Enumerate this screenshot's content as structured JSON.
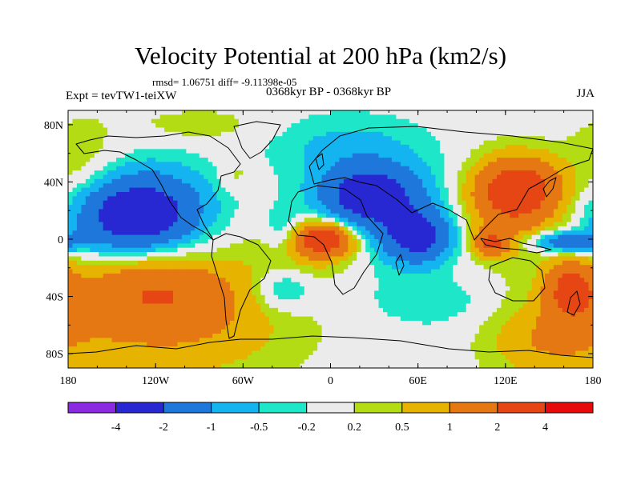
{
  "chart_data": {
    "type": "heatmap",
    "title": "Velocity Potential at 200 hPa (km2/s)",
    "stats_line": "rmsd= 1.06751  diff= -9.11398e-05",
    "experiment": "Expt = tevTW1-teiXW",
    "period": "0368kyr BP - 0368kyr BP",
    "season": "JJA",
    "lon_range": [
      -180,
      180
    ],
    "lat_range": [
      -90,
      90
    ],
    "x_ticks": [
      {
        "value": -180,
        "label": "180"
      },
      {
        "value": -120,
        "label": "120W"
      },
      {
        "value": -60,
        "label": "60W"
      },
      {
        "value": 0,
        "label": "0"
      },
      {
        "value": 60,
        "label": "60E"
      },
      {
        "value": 120,
        "label": "120E"
      },
      {
        "value": 180,
        "label": "180"
      }
    ],
    "y_ticks": [
      {
        "value": 80,
        "label": "80N"
      },
      {
        "value": 40,
        "label": "40N"
      },
      {
        "value": 0,
        "label": "0"
      },
      {
        "value": -40,
        "label": "40S"
      },
      {
        "value": -80,
        "label": "80S"
      }
    ],
    "levels": [
      -4,
      -2,
      -1,
      -0.5,
      -0.2,
      0.2,
      0.5,
      1,
      2,
      4
    ],
    "colorbar_labels": [
      "-4",
      "-2",
      "-1",
      "-0.5",
      "-0.2",
      "0.2",
      "0.5",
      "1",
      "2",
      "4"
    ],
    "colors": [
      "#8a2be2",
      "#2828d2",
      "#1e78dc",
      "#14b4f0",
      "#1ee6c8",
      "#ebebeb",
      "#b4dc14",
      "#e6b400",
      "#e67814",
      "#e64614",
      "#e60a0a"
    ],
    "field_centers": [
      {
        "lon": -135,
        "lat": 15,
        "sx": 28,
        "sy": 17,
        "amp": -2.6
      },
      {
        "lon": -125,
        "lat": 30,
        "sx": 32,
        "sy": 20,
        "amp": -0.9
      },
      {
        "lon": 25,
        "lat": 30,
        "sx": 22,
        "sy": 14,
        "amp": -2.3
      },
      {
        "lon": 60,
        "lat": 2,
        "sx": 16,
        "sy": 12,
        "amp": -2.3
      },
      {
        "lon": 40,
        "lat": 20,
        "sx": 34,
        "sy": 30,
        "amp": -0.9
      },
      {
        "lon": 5,
        "lat": 65,
        "sx": 35,
        "sy": 16,
        "amp": -0.5
      },
      {
        "lon": 162,
        "lat": -2,
        "sx": 18,
        "sy": 5,
        "amp": -1.8
      },
      {
        "lon": -32,
        "lat": 5,
        "sx": 10,
        "sy": 12,
        "amp": -0.8
      },
      {
        "lon": -32,
        "lat": -35,
        "sx": 14,
        "sy": 10,
        "amp": -0.8
      },
      {
        "lon": 72,
        "lat": -45,
        "sx": 30,
        "sy": 12,
        "amp": -0.4
      },
      {
        "lon": -5,
        "lat": 0,
        "sx": 14,
        "sy": 8,
        "amp": 2.7
      },
      {
        "lon": -10,
        "lat": -5,
        "sx": 30,
        "sy": 16,
        "amp": 0.8
      },
      {
        "lon": 130,
        "lat": 35,
        "sx": 20,
        "sy": 15,
        "amp": 2.4
      },
      {
        "lon": 120,
        "lat": 20,
        "sx": 25,
        "sy": 25,
        "amp": 1.0
      },
      {
        "lon": 110,
        "lat": -3,
        "sx": 8,
        "sy": 6,
        "amp": 2.0
      },
      {
        "lon": 165,
        "lat": -35,
        "sx": 12,
        "sy": 14,
        "amp": 2.2
      },
      {
        "lon": -120,
        "lat": -35,
        "sx": 40,
        "sy": 18,
        "amp": 1.6
      },
      {
        "lon": -110,
        "lat": -65,
        "sx": 60,
        "sy": 25,
        "amp": 0.9
      },
      {
        "lon": 150,
        "lat": -70,
        "sx": 30,
        "sy": 20,
        "amp": 0.9
      },
      {
        "lon": -90,
        "lat": 80,
        "sx": 30,
        "sy": 8,
        "amp": 0.4
      },
      {
        "lon": -170,
        "lat": 50,
        "sx": 20,
        "sy": 25,
        "amp": 0.5
      },
      {
        "lon": -65,
        "lat": 45,
        "sx": 8,
        "sy": 8,
        "amp": 0.4
      }
    ]
  }
}
